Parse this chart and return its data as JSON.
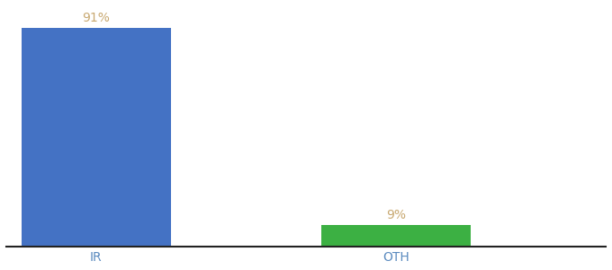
{
  "categories": [
    "IR",
    "OTH"
  ],
  "values": [
    91,
    9
  ],
  "bar_colors": [
    "#4472c4",
    "#3cb043"
  ],
  "label_color": "#c8a870",
  "background_color": "#ffffff",
  "bar_labels": [
    "91%",
    "9%"
  ],
  "ylim": [
    0,
    100
  ],
  "bar_width": 0.5,
  "x_positions": [
    0,
    1
  ],
  "xlim": [
    -0.3,
    1.7
  ],
  "tick_fontsize": 10,
  "tick_color": "#5a8abf",
  "spine_color": "#222222",
  "label_fontsize": 10
}
